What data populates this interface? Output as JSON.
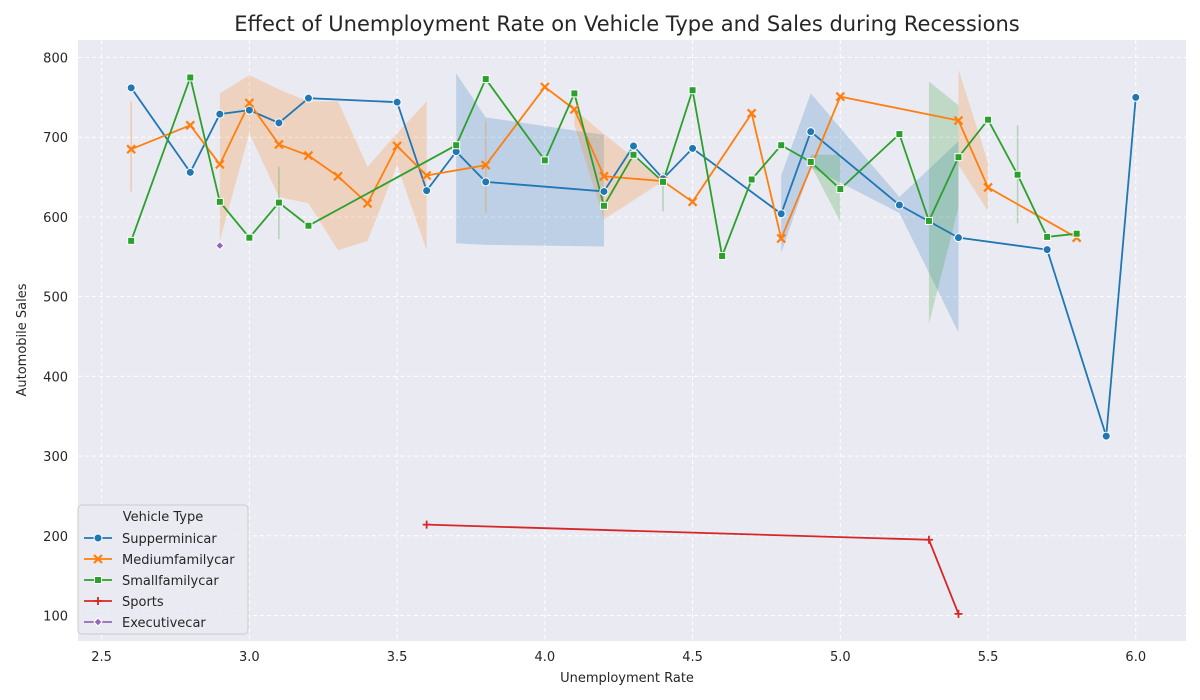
{
  "chart_data": {
    "type": "line",
    "title": "Effect of Unemployment Rate on Vehicle Type and Sales during Recessions",
    "xlabel": "Unemployment Rate",
    "ylabel": "Automobile Sales",
    "xlim": [
      2.42,
      6.17
    ],
    "ylim": [
      68,
      822
    ],
    "xticks": [
      "2.5",
      "3.0",
      "3.5",
      "4.0",
      "4.5",
      "5.0",
      "5.5",
      "6.0"
    ],
    "yticks": [
      "100",
      "200",
      "300",
      "400",
      "500",
      "600",
      "700",
      "800"
    ],
    "grid": true,
    "legend": {
      "title": "Vehicle Type",
      "placement": "lower-left"
    },
    "series": [
      {
        "name": "Supperminicar",
        "color": "#1f77b4",
        "marker": "circle",
        "points": [
          [
            2.6,
            762
          ],
          [
            2.8,
            656
          ],
          [
            2.9,
            729
          ],
          [
            3.0,
            734
          ],
          [
            3.1,
            718
          ],
          [
            3.2,
            749
          ],
          [
            3.5,
            744
          ],
          [
            3.6,
            633
          ],
          [
            3.7,
            682
          ],
          [
            3.8,
            644
          ],
          [
            4.2,
            632
          ],
          [
            4.3,
            689
          ],
          [
            4.4,
            648
          ],
          [
            4.5,
            686
          ],
          [
            4.8,
            604
          ],
          [
            4.9,
            707
          ],
          [
            5.2,
            615
          ],
          [
            5.4,
            574
          ],
          [
            5.7,
            559
          ],
          [
            5.9,
            325
          ],
          [
            6.0,
            750
          ]
        ],
        "band": [
          [
            3.7,
            567,
            780
          ],
          [
            3.8,
            565,
            725
          ],
          [
            4.2,
            563,
            703
          ],
          [
            4.8,
            555,
            652
          ],
          [
            4.9,
            662,
            755
          ],
          [
            5.2,
            605,
            625
          ],
          [
            5.4,
            455,
            695
          ]
        ]
      },
      {
        "name": "Mediumfamilycar",
        "color": "#ff7f0e",
        "marker": "x",
        "points": [
          [
            2.6,
            685
          ],
          [
            2.8,
            715
          ],
          [
            2.9,
            666
          ],
          [
            3.0,
            743
          ],
          [
            3.1,
            691
          ],
          [
            3.2,
            677
          ],
          [
            3.3,
            651
          ],
          [
            3.4,
            617
          ],
          [
            3.5,
            689
          ],
          [
            3.6,
            652
          ],
          [
            3.8,
            665
          ],
          [
            4.0,
            763
          ],
          [
            4.1,
            735
          ],
          [
            4.2,
            651
          ],
          [
            4.4,
            645
          ],
          [
            4.5,
            619
          ],
          [
            4.7,
            730
          ],
          [
            4.8,
            573
          ],
          [
            5.0,
            751
          ],
          [
            5.4,
            721
          ],
          [
            5.5,
            637
          ],
          [
            5.8,
            574
          ]
        ],
        "band": [
          [
            2.9,
            570,
            755
          ],
          [
            3.0,
            705,
            778
          ],
          [
            3.1,
            625,
            760
          ],
          [
            3.2,
            617,
            745
          ],
          [
            3.3,
            558,
            745
          ],
          [
            3.4,
            570,
            663
          ],
          [
            3.5,
            665,
            705
          ],
          [
            3.6,
            558,
            745
          ],
          [
            4.1,
            715,
            735
          ],
          [
            4.2,
            597,
            704
          ],
          [
            4.4,
            645,
            645
          ],
          [
            5.4,
            665,
            785
          ],
          [
            5.5,
            607,
            668
          ]
        ],
        "vlines": [
          [
            2.6,
            632,
            745
          ],
          [
            3.8,
            605,
            720
          ]
        ]
      },
      {
        "name": "Smallfamilycar",
        "color": "#2ca02c",
        "marker": "square",
        "points": [
          [
            2.6,
            570
          ],
          [
            2.8,
            775
          ],
          [
            2.9,
            619
          ],
          [
            3.0,
            574
          ],
          [
            3.1,
            618
          ],
          [
            3.2,
            589
          ],
          [
            3.7,
            690
          ],
          [
            3.8,
            773
          ],
          [
            4.0,
            671
          ],
          [
            4.1,
            755
          ],
          [
            4.2,
            614
          ],
          [
            4.3,
            678
          ],
          [
            4.4,
            644
          ],
          [
            4.5,
            759
          ],
          [
            4.6,
            551
          ],
          [
            4.7,
            647
          ],
          [
            4.8,
            690
          ],
          [
            4.9,
            669
          ],
          [
            5.0,
            635
          ],
          [
            5.2,
            704
          ],
          [
            5.3,
            595
          ],
          [
            5.4,
            675
          ],
          [
            5.5,
            722
          ],
          [
            5.6,
            653
          ],
          [
            5.7,
            575
          ],
          [
            5.8,
            579
          ]
        ],
        "band": [
          [
            4.9,
            665,
            678
          ],
          [
            5.0,
            594,
            678
          ],
          [
            5.3,
            466,
            770
          ],
          [
            5.4,
            612,
            740
          ]
        ],
        "vlines": [
          [
            3.1,
            572,
            663
          ],
          [
            4.4,
            607,
            656
          ],
          [
            5.6,
            592,
            715
          ]
        ]
      },
      {
        "name": "Sports",
        "color": "#d62728",
        "marker": "plus",
        "points": [
          [
            3.6,
            214
          ],
          [
            5.3,
            195
          ],
          [
            5.4,
            102
          ]
        ],
        "band": []
      },
      {
        "name": "Executivecar",
        "color": "#9467bd",
        "marker": "diamond",
        "points": [
          [
            2.9,
            564
          ]
        ],
        "band": []
      }
    ]
  }
}
